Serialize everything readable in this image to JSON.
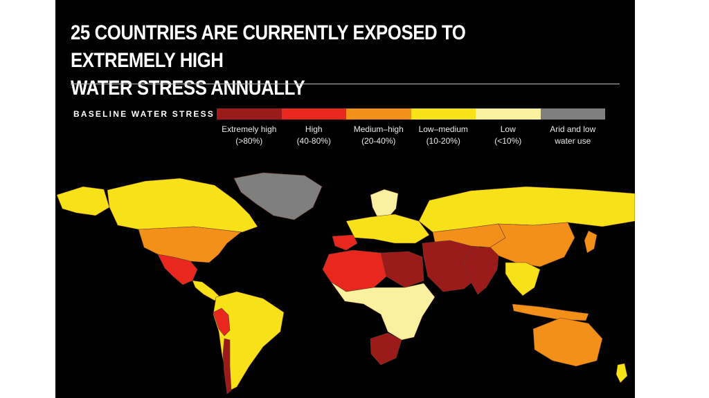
{
  "title": {
    "line1": "25 COUNTRIES ARE CURRENTLY EXPOSED TO EXTREMELY HIGH",
    "line2": "WATER STRESS ANNUALLY"
  },
  "legend": {
    "label": "BASELINE WATER STRESS",
    "items": [
      {
        "name": "Extremely high",
        "range": "(>80%)",
        "color": "#9b1b1b"
      },
      {
        "name": "High",
        "range": "(40-80%)",
        "color": "#e8281e"
      },
      {
        "name": "Medium–high",
        "range": "(20-40%)",
        "color": "#f39019"
      },
      {
        "name": "Low–medium",
        "range": "(10-20%)",
        "color": "#f7e21a"
      },
      {
        "name": "Low",
        "range": "(<10%)",
        "color": "#f9f0a0"
      },
      {
        "name": "Arid and low",
        "range": "water use",
        "color": "#7f7f7f"
      }
    ]
  },
  "map": {
    "background": "#000000",
    "regions": [
      {
        "name": "canada",
        "category": "Low–medium"
      },
      {
        "name": "alaska",
        "category": "Low–medium"
      },
      {
        "name": "greenland",
        "category": "Arid and low"
      },
      {
        "name": "usa",
        "category": "Medium–high"
      },
      {
        "name": "mexico",
        "category": "High"
      },
      {
        "name": "central-america",
        "category": "Low–medium"
      },
      {
        "name": "south-america",
        "category": "Low–medium"
      },
      {
        "name": "peru",
        "category": "High"
      },
      {
        "name": "chile",
        "category": "Extremely high"
      },
      {
        "name": "scandinavia",
        "category": "Low"
      },
      {
        "name": "europe",
        "category": "Low–medium"
      },
      {
        "name": "spain",
        "category": "High"
      },
      {
        "name": "north-africa",
        "category": "High"
      },
      {
        "name": "libya-egypt",
        "category": "Extremely high"
      },
      {
        "name": "middle-east",
        "category": "Extremely high"
      },
      {
        "name": "africa",
        "category": "Low"
      },
      {
        "name": "south-africa",
        "category": "Extremely high"
      },
      {
        "name": "russia",
        "category": "Low–medium"
      },
      {
        "name": "central-asia",
        "category": "Medium–high"
      },
      {
        "name": "china",
        "category": "Medium–high"
      },
      {
        "name": "india",
        "category": "Extremely high"
      },
      {
        "name": "southeast-asia",
        "category": "Low–medium"
      },
      {
        "name": "indonesia",
        "category": "Medium–high"
      },
      {
        "name": "australia",
        "category": "Medium–high"
      },
      {
        "name": "new-zealand",
        "category": "Low–medium"
      }
    ]
  }
}
